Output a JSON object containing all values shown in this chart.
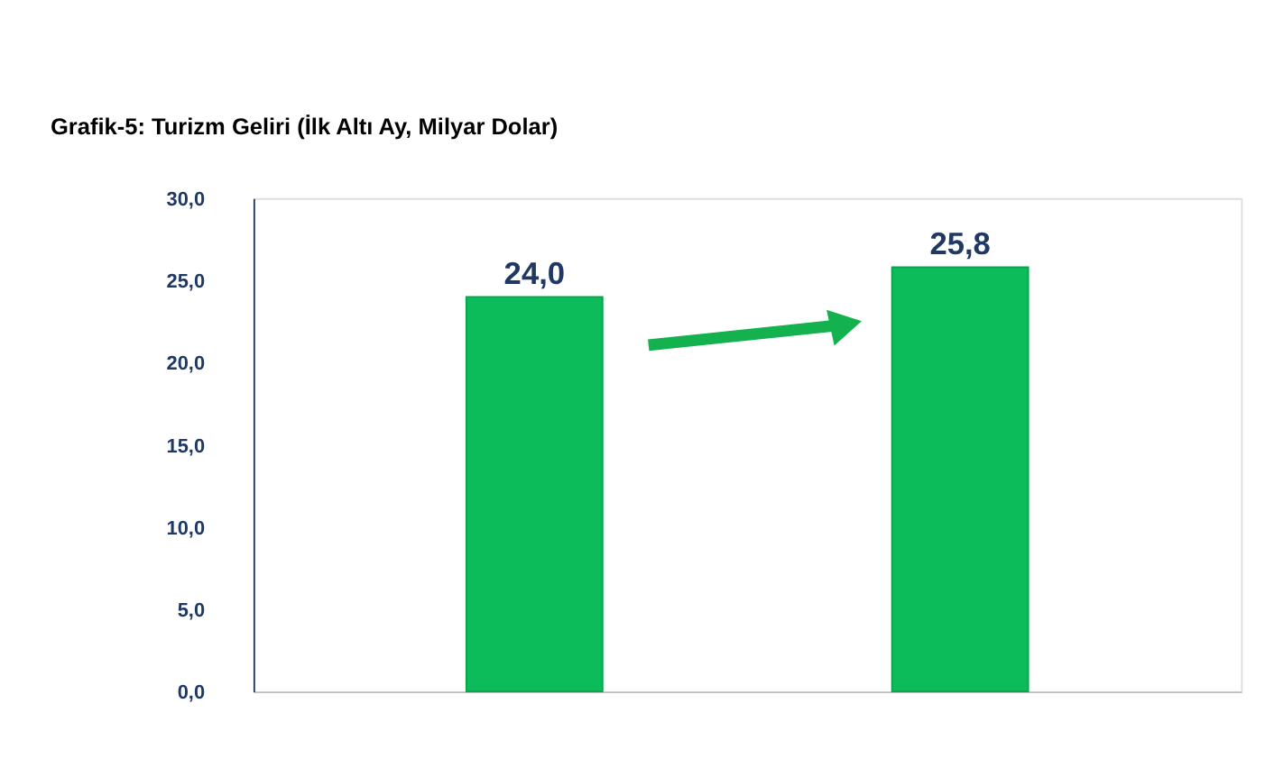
{
  "chart_data": {
    "type": "bar",
    "title": "Grafik-5: Turizm Geliri (İlk Altı Ay, Milyar Dolar)",
    "categories": [
      null,
      null
    ],
    "series": [
      {
        "color": "#0cbc5a",
        "values": [
          24.0,
          25.8
        ],
        "value_labels": [
          "24,0",
          "25,8"
        ]
      }
    ],
    "ylim": [
      0,
      30
    ],
    "yticks": [
      {
        "value": 0,
        "label": "0,0"
      },
      {
        "value": 5,
        "label": "5,0"
      },
      {
        "value": 10,
        "label": "10,0"
      },
      {
        "value": 15,
        "label": "15,0"
      },
      {
        "value": 20,
        "label": "20,0"
      },
      {
        "value": 25,
        "label": "25,0"
      },
      {
        "value": 30,
        "label": "30,0"
      }
    ],
    "grid": false,
    "tick_labels": "y"
  }
}
